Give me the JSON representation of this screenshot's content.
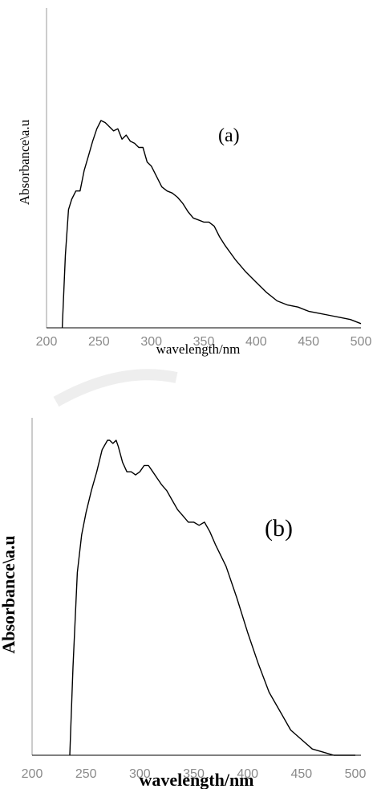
{
  "chart_data": [
    {
      "type": "line",
      "panel_label": "(a)",
      "xlabel": "wavelength/nm",
      "ylabel": "Absorbance\\a.u",
      "xlim": [
        200,
        500
      ],
      "x_ticks": [
        "200",
        "250",
        "300",
        "350",
        "400",
        "450",
        "500"
      ],
      "series": [
        {
          "x": [
            215,
            218,
            221,
            224,
            228,
            232,
            236,
            240,
            244,
            248,
            252,
            256,
            260,
            264,
            268,
            272,
            276,
            280,
            284,
            288,
            292,
            296,
            300,
            305,
            310,
            315,
            320,
            325,
            330,
            335,
            340,
            345,
            350,
            355,
            360,
            365,
            370,
            380,
            390,
            400,
            410,
            420,
            430,
            440,
            450,
            460,
            470,
            480,
            490,
            500
          ],
          "y": [
            0.0,
            0.35,
            0.57,
            0.62,
            0.66,
            0.66,
            0.76,
            0.83,
            0.9,
            0.96,
            1.0,
            0.99,
            0.97,
            0.95,
            0.96,
            0.91,
            0.93,
            0.9,
            0.89,
            0.87,
            0.87,
            0.8,
            0.78,
            0.73,
            0.68,
            0.66,
            0.65,
            0.63,
            0.6,
            0.56,
            0.53,
            0.52,
            0.51,
            0.51,
            0.49,
            0.44,
            0.4,
            0.33,
            0.27,
            0.22,
            0.17,
            0.13,
            0.11,
            0.1,
            0.08,
            0.07,
            0.06,
            0.05,
            0.04,
            0.02
          ]
        }
      ]
    },
    {
      "type": "line",
      "panel_label": "(b)",
      "xlabel": "wavelength/nm",
      "ylabel": "Absorbance\\a.u",
      "xlim": [
        200,
        500
      ],
      "x_ticks": [
        "200",
        "250",
        "300",
        "350",
        "400",
        "450",
        "500"
      ],
      "series": [
        {
          "x": [
            235,
            238,
            242,
            246,
            250,
            255,
            260,
            265,
            270,
            272,
            275,
            278,
            280,
            284,
            288,
            292,
            296,
            300,
            304,
            308,
            312,
            316,
            320,
            325,
            330,
            335,
            340,
            345,
            350,
            355,
            360,
            365,
            370,
            380,
            390,
            400,
            410,
            420,
            430,
            440,
            450,
            460,
            470,
            480,
            490,
            500
          ],
          "y": [
            0.0,
            0.28,
            0.58,
            0.7,
            0.77,
            0.84,
            0.9,
            0.97,
            1.0,
            1.0,
            0.99,
            1.0,
            0.98,
            0.93,
            0.9,
            0.9,
            0.89,
            0.9,
            0.92,
            0.92,
            0.9,
            0.88,
            0.86,
            0.84,
            0.81,
            0.78,
            0.76,
            0.74,
            0.74,
            0.73,
            0.74,
            0.71,
            0.67,
            0.6,
            0.5,
            0.39,
            0.29,
            0.2,
            0.14,
            0.08,
            0.05,
            0.02,
            0.01,
            0.0,
            0.0,
            0.0
          ]
        }
      ]
    }
  ]
}
